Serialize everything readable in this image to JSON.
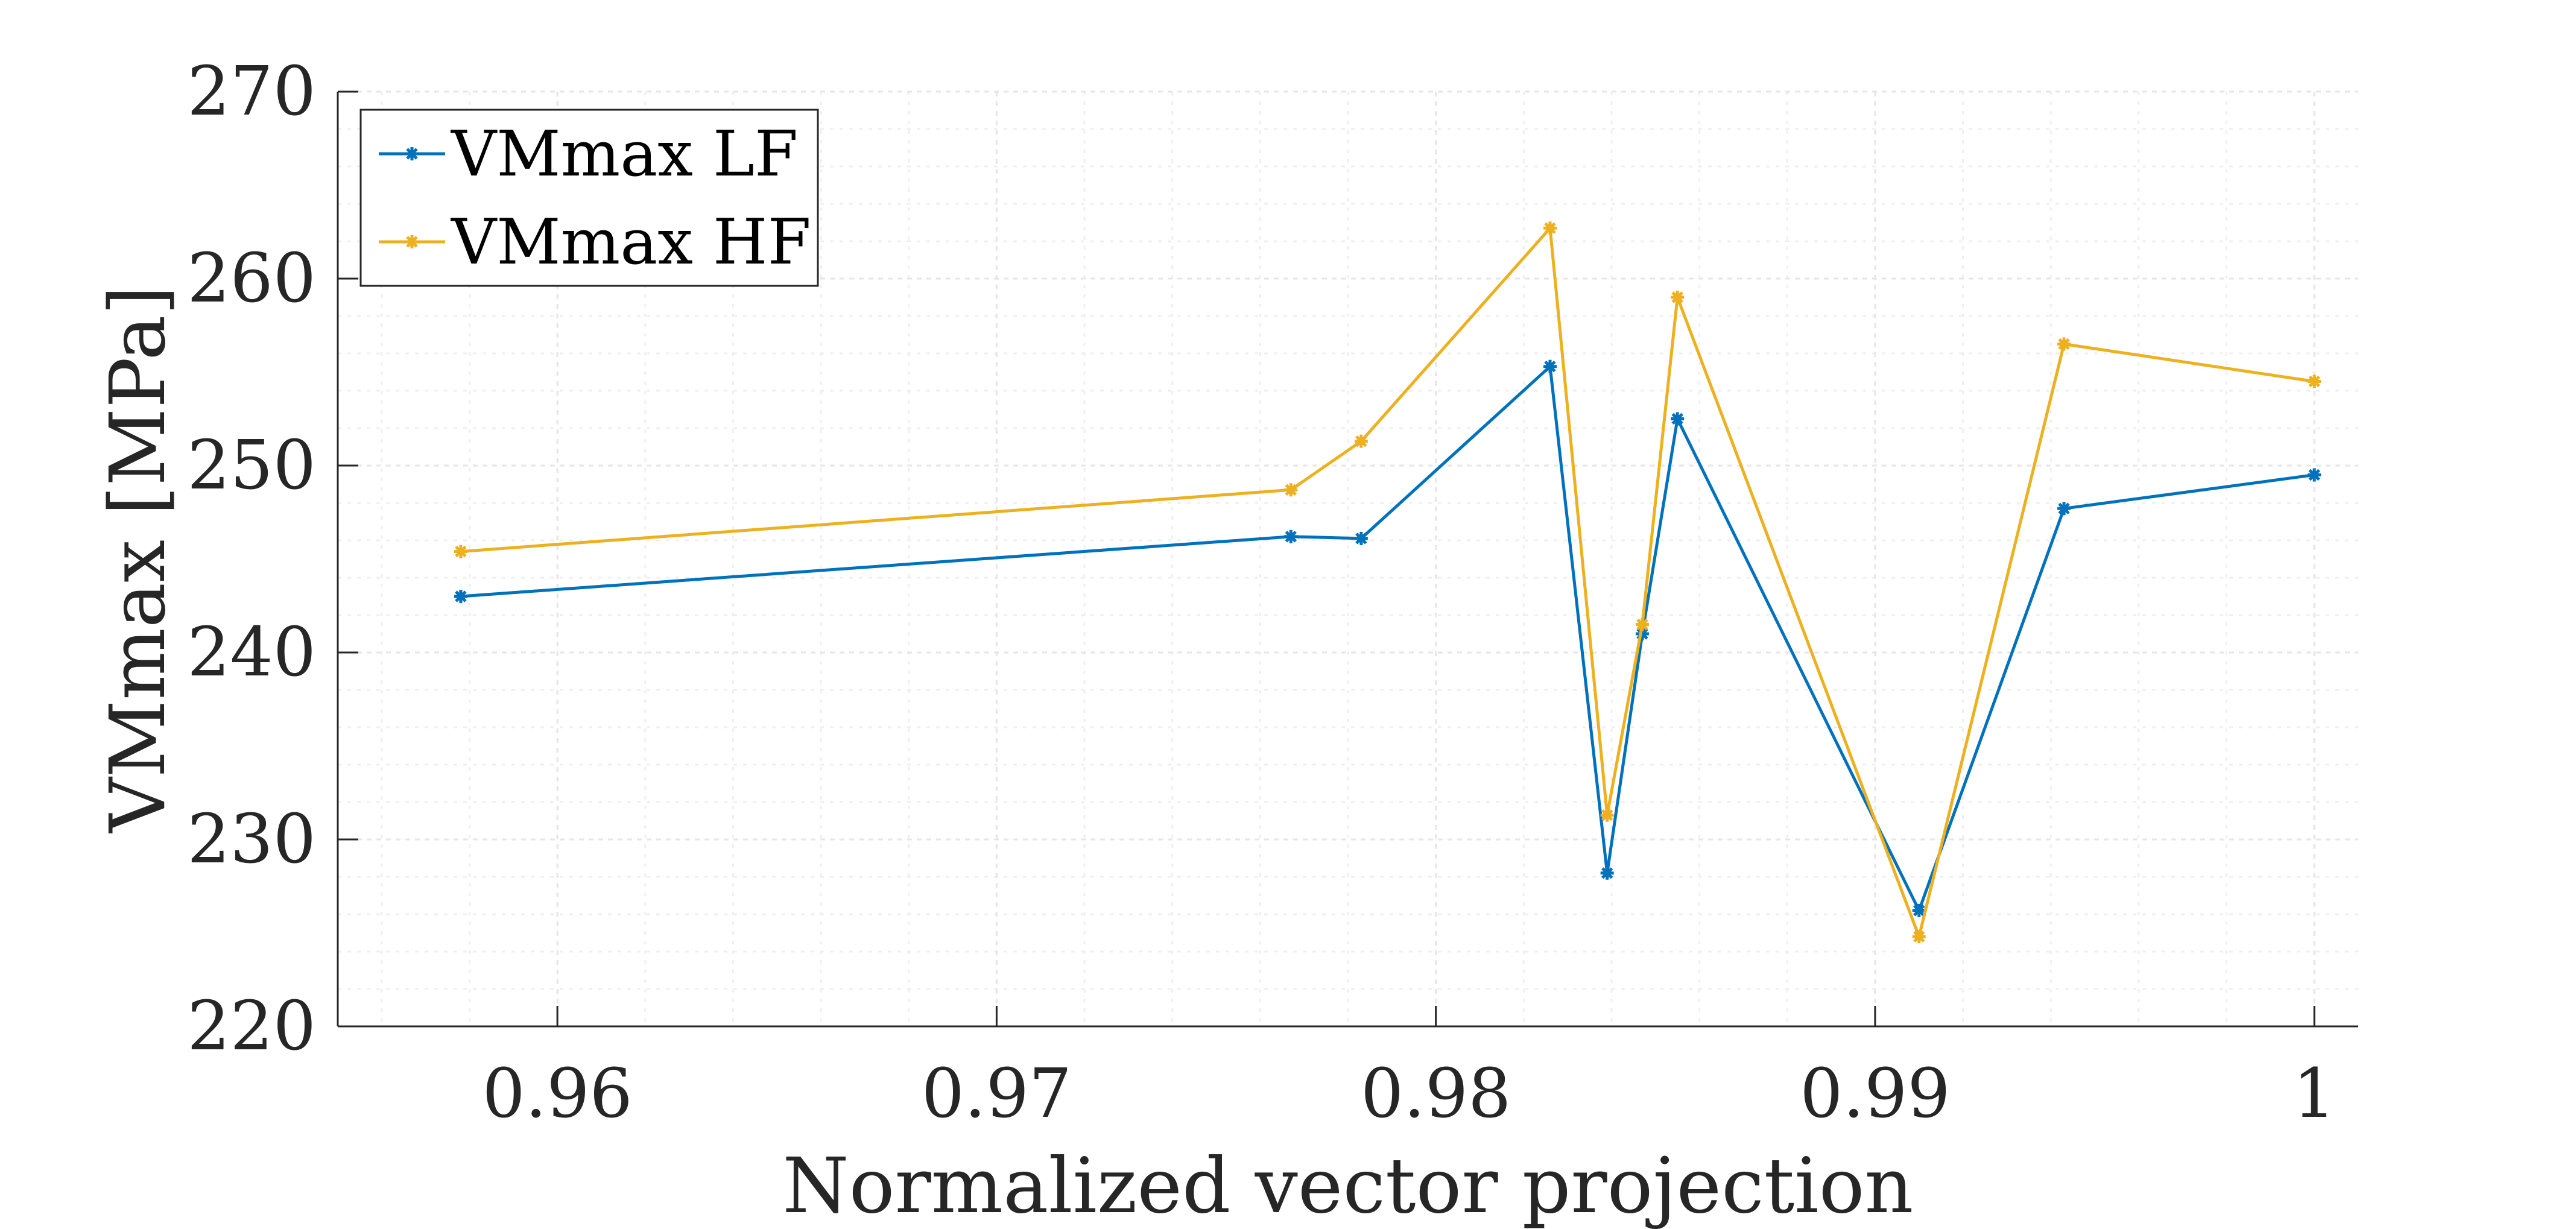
{
  "colors": {
    "background": "#ffffff",
    "axis": "#262626",
    "grid": "#e6e6e6",
    "series_lf": "#0072bd",
    "series_hf": "#edb120"
  },
  "chart_data": {
    "type": "line",
    "title": "",
    "xlabel": "Normalized vector projection",
    "ylabel": "VMmax [MPa]",
    "xlim": [
      0.955,
      1.001
    ],
    "ylim": [
      220,
      270
    ],
    "xticks": [
      0.96,
      0.97,
      0.98,
      0.99,
      1
    ],
    "xtick_labels": [
      "0.96",
      "0.97",
      "0.98",
      "0.99",
      "1"
    ],
    "yticks": [
      220,
      230,
      240,
      250,
      260,
      270
    ],
    "ytick_labels": [
      "220",
      "230",
      "240",
      "250",
      "260",
      "270"
    ],
    "grid": true,
    "minor_grid": true,
    "legend_position": "top-left",
    "series": [
      {
        "name": "VMmax LF",
        "color": "#0072bd",
        "marker": "asterisk",
        "x": [
          0.9578,
          0.9767,
          0.9783,
          0.9826,
          0.9839,
          0.9847,
          0.9855,
          0.991,
          0.9943,
          1.0
        ],
        "y": [
          243.0,
          246.2,
          246.1,
          255.3,
          228.2,
          241.0,
          252.5,
          226.2,
          247.7,
          249.5
        ]
      },
      {
        "name": "VMmax HF",
        "color": "#edb120",
        "marker": "asterisk",
        "x": [
          0.9578,
          0.9767,
          0.9783,
          0.9826,
          0.9839,
          0.9847,
          0.9855,
          0.991,
          0.9943,
          1.0
        ],
        "y": [
          245.4,
          248.7,
          251.3,
          262.7,
          231.3,
          241.5,
          259.0,
          224.8,
          256.5,
          254.5
        ]
      }
    ]
  }
}
